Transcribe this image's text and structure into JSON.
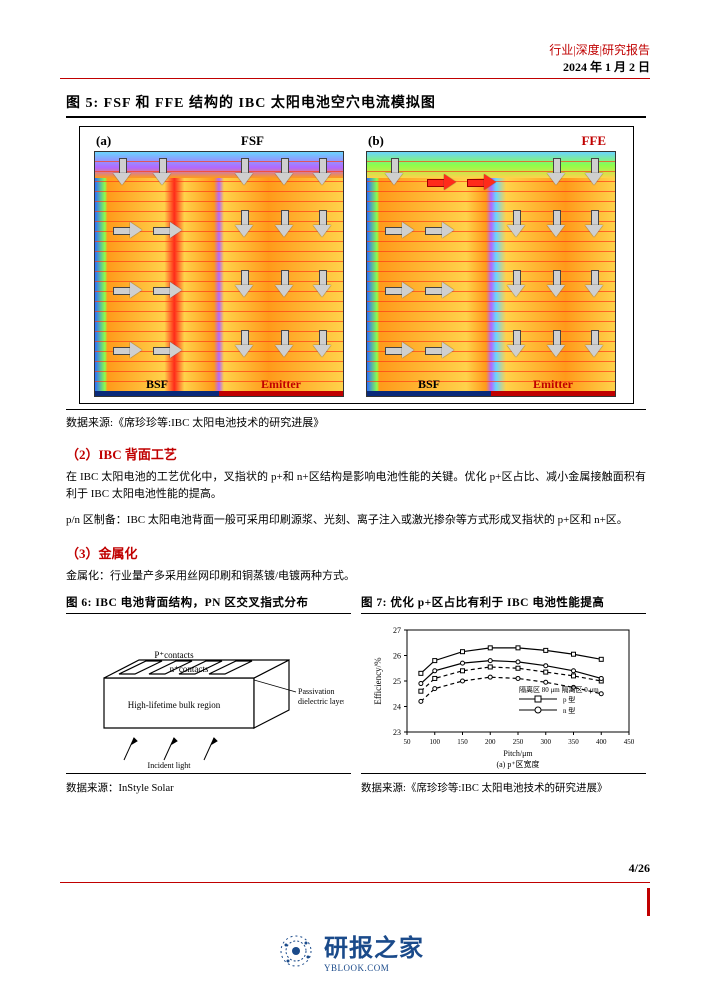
{
  "header": {
    "category": "行业|深度|研究报告",
    "date": "2024 年 1 月 2 日"
  },
  "fig5": {
    "title": "图 5:  FSF 和 FFE 结构的 IBC 太阳电池空穴电流模拟图",
    "panel_a_label": "(a)",
    "panel_a_tag": "FSF",
    "panel_b_label": "(b)",
    "panel_b_tag": "FFE",
    "bsf_label": "BSF",
    "emitter_label": "Emitter",
    "caption": "数据来源:《席珍珍等:IBC 太阳电池技术的研究进展》",
    "styling": {
      "border_color": "#000000",
      "gradient_a": [
        "#2b6cff",
        "#8bff4a",
        "#ff9a1a",
        "#ffd24a",
        "#ff2a1a",
        "#ffd24a",
        "#ff9a1a",
        "#b366ff",
        "#ffd24a",
        "#ff9a1a",
        "#ffd24a"
      ],
      "gradient_b": [
        "#2b6cff",
        "#8bff4a",
        "#ff9a1a",
        "#ffd24a",
        "#ff9a1a",
        "#b366ff",
        "#6ad4ff",
        "#ffd24a",
        "#ff9a1a",
        "#ffd24a"
      ],
      "topband_a": [
        "#6ad4ff",
        "#b366ff",
        "#ff9a1a"
      ],
      "topband_b": [
        "#6ad4ff",
        "#8bff4a",
        "#ffd24a"
      ],
      "arrow_fill": "#cfcfcf",
      "arrow_red": "#ff2a1a",
      "line_stripe_color": "rgba(255,60,20,0.7)",
      "bottom_bsf_color": "#0a2a7a",
      "bottom_emitter_color": "#c00000"
    }
  },
  "sec2": {
    "heading": "（2）IBC 背面工艺",
    "para1": "在 IBC 太阳电池的工艺优化中，叉指状的 p+和 n+区结构是影响电池性能的关键。优化 p+区占比、减小金属接触面积有利于 IBC 太阳电池性能的提高。",
    "para2": "p/n 区制备：IBC 太阳电池背面一般可采用印刷源浆、光刻、离子注入或激光掺杂等方式形成叉指状的 p+区和 n+区。"
  },
  "sec3": {
    "heading": "（3）金属化",
    "para1": "金属化：行业量产多采用丝网印刷和铜蒸镀/电镀两种方式。"
  },
  "fig6": {
    "title": "图 6:  IBC 电池背面结构，PN 区交叉指式分布",
    "labels": {
      "p_contacts": "P⁺contacts",
      "n_contacts": "n⁺contacts",
      "bulk": "High-lifetime bulk region",
      "passivation1": "Passivation",
      "passivation2": "dielectric layer",
      "incident": "Incident light"
    },
    "caption": "数据来源：InStyle Solar",
    "styling": {
      "box_fill": "#ffffff",
      "box_stroke": "#000000",
      "line_width": 1.2
    }
  },
  "fig7": {
    "title": "图 7:  优化 p+区占比有利于 IBC 电池性能提高",
    "type": "line",
    "xlabel_top": "Pitch/μm",
    "xlabel_bottom": "(a) p⁺区宽度",
    "ylabel": "Efficiency/%",
    "xlim": [
      50,
      450
    ],
    "ylim": [
      23,
      27
    ],
    "xticks": [
      50,
      100,
      150,
      200,
      250,
      300,
      350,
      400,
      450
    ],
    "yticks": [
      23,
      24,
      25,
      26,
      27
    ],
    "legend_title1": "隔离区 80 μm",
    "legend_title2": "隔离区 0 μm",
    "series": [
      {
        "name": "p型 80μm",
        "marker": "square",
        "dash": "4,3",
        "color": "#000000",
        "x": [
          75,
          100,
          150,
          200,
          250,
          300,
          350,
          400
        ],
        "y": [
          24.6,
          25.1,
          25.4,
          25.55,
          25.5,
          25.35,
          25.2,
          25.0
        ]
      },
      {
        "name": "n型 80μm",
        "marker": "square",
        "dash": "none",
        "color": "#000000",
        "x": [
          75,
          100,
          150,
          200,
          250,
          300,
          350,
          400
        ],
        "y": [
          25.3,
          25.8,
          26.15,
          26.3,
          26.3,
          26.2,
          26.05,
          25.85
        ]
      },
      {
        "name": "p型 0μm",
        "marker": "circle",
        "dash": "4,3",
        "color": "#000000",
        "x": [
          75,
          100,
          150,
          200,
          250,
          300,
          350,
          400
        ],
        "y": [
          24.2,
          24.7,
          25.0,
          25.15,
          25.1,
          24.95,
          24.75,
          24.5
        ]
      },
      {
        "name": "n型 0μm",
        "marker": "circle",
        "dash": "none",
        "color": "#000000",
        "x": [
          75,
          100,
          150,
          200,
          250,
          300,
          350,
          400
        ],
        "y": [
          24.9,
          25.4,
          25.7,
          25.8,
          25.75,
          25.6,
          25.4,
          25.1
        ]
      }
    ],
    "legend_labels": {
      "p": "p 型",
      "n": "n 型"
    },
    "caption": "数据来源:《席珍珍等:IBC 太阳电池技术的研究进展》",
    "styling": {
      "axis_color": "#000000",
      "grid_color": "#dddddd",
      "label_fontsize": 9,
      "tick_fontsize": 8,
      "background_color": "#ffffff",
      "line_width": 1.2,
      "marker_size": 4
    }
  },
  "pagenum": "4/26",
  "watermark": {
    "brand": "研报之家",
    "sub": "YBLOOK.COM"
  }
}
